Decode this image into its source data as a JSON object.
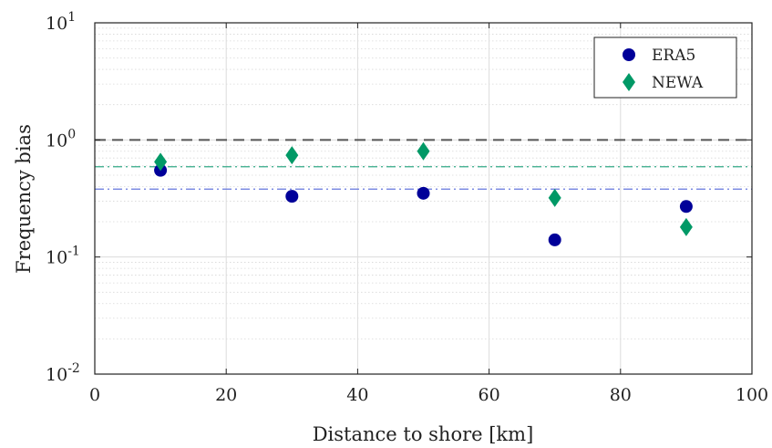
{
  "chart_data": {
    "type": "scatter",
    "xlabel": "Distance to shore [km]",
    "ylabel": "Frequency bias",
    "xlim": [
      0,
      100
    ],
    "ylim": [
      0.01,
      10
    ],
    "yscale": "log",
    "x_ticks": [
      0,
      20,
      40,
      60,
      80,
      100
    ],
    "x_tick_labels": [
      "0",
      "20",
      "40",
      "60",
      "80",
      "100"
    ],
    "y_ticks": [
      0.01,
      0.1,
      1,
      10
    ],
    "y_tick_bases": [
      "10",
      "10",
      "10",
      "10"
    ],
    "y_tick_exponents": [
      "-2",
      "-1",
      "0",
      "1"
    ],
    "grid": true,
    "legend_position": "top-right",
    "series": [
      {
        "name": "ERA5",
        "marker": "circle",
        "color": "#000099",
        "x": [
          10,
          30,
          50,
          70,
          90
        ],
        "y": [
          0.55,
          0.33,
          0.35,
          0.14,
          0.27
        ]
      },
      {
        "name": "NEWA",
        "marker": "diamond",
        "color": "#009966",
        "x": [
          10,
          30,
          50,
          70,
          90
        ],
        "y": [
          0.65,
          0.74,
          0.8,
          0.32,
          0.18
        ]
      }
    ],
    "reference_lines": [
      {
        "y": 1.0,
        "style": "dashed",
        "color": "#555555"
      },
      {
        "y": 0.59,
        "style": "dash-dot",
        "color": "#33aa88"
      },
      {
        "y": 0.38,
        "style": "dash-dot",
        "color": "#6677dd"
      }
    ]
  }
}
